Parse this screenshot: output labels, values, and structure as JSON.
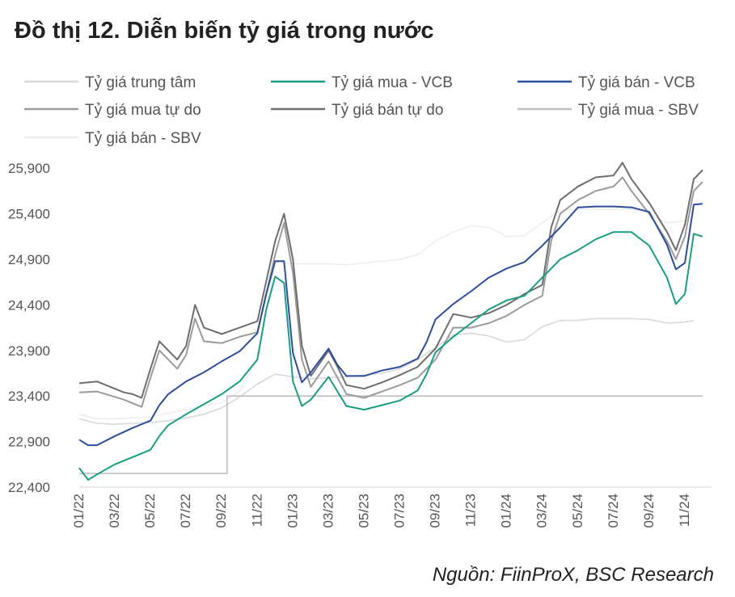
{
  "title": "Đồ thị 12. Diễn biến tỷ giá trong nước",
  "source": "Nguồn: FiinProX, BSC Research",
  "chart_data": {
    "type": "line",
    "x_tick_labels": [
      "01/22",
      "03/22",
      "05/22",
      "07/22",
      "09/22",
      "11/22",
      "01/23",
      "03/23",
      "05/23",
      "07/23",
      "09/23",
      "11/23",
      "01/24",
      "03/24",
      "05/24",
      "07/24",
      "09/24",
      "11/24"
    ],
    "y_ticks": [
      22400,
      22900,
      23400,
      23900,
      24400,
      24900,
      25400,
      25900
    ],
    "y_tick_labels": [
      "22,400",
      "22,900",
      "23,400",
      "23,900",
      "24,400",
      "24,900",
      "25,400",
      "25,900"
    ],
    "ylim": [
      22400,
      26150
    ],
    "xlim": [
      0,
      35.5
    ],
    "grid": false,
    "legend_position": "top",
    "series": [
      {
        "name": "Tỷ giá trung tâm",
        "color": "#d9d9d9",
        "width": 1.6,
        "points": [
          [
            0,
            23150
          ],
          [
            1,
            23100
          ],
          [
            2,
            23090
          ],
          [
            3,
            23100
          ],
          [
            4,
            23110
          ],
          [
            5,
            23130
          ],
          [
            6,
            23160
          ],
          [
            7,
            23200
          ],
          [
            8,
            23270
          ],
          [
            9,
            23390
          ],
          [
            10,
            23530
          ],
          [
            11,
            23640
          ],
          [
            12,
            23610
          ],
          [
            13,
            23590
          ],
          [
            14,
            23600
          ],
          [
            15,
            23610
          ],
          [
            16,
            23630
          ],
          [
            17,
            23650
          ],
          [
            18,
            23700
          ],
          [
            19,
            23800
          ],
          [
            20,
            23930
          ],
          [
            21,
            24070
          ],
          [
            22,
            24090
          ],
          [
            23,
            24060
          ],
          [
            24,
            23990
          ],
          [
            25,
            24020
          ],
          [
            26,
            24160
          ],
          [
            27,
            24230
          ],
          [
            28,
            24230
          ],
          [
            29,
            24250
          ],
          [
            30,
            24250
          ],
          [
            31,
            24250
          ],
          [
            32,
            24240
          ],
          [
            33,
            24200
          ],
          [
            34,
            24210
          ],
          [
            34.5,
            24230
          ]
        ]
      },
      {
        "name": "Tỷ giá mua - VCB",
        "color": "#1a9e83",
        "width": 2,
        "points": [
          [
            0,
            22610
          ],
          [
            0.5,
            22480
          ],
          [
            1,
            22540
          ],
          [
            2,
            22650
          ],
          [
            3,
            22730
          ],
          [
            4,
            22810
          ],
          [
            4.5,
            22960
          ],
          [
            5,
            23080
          ],
          [
            6,
            23200
          ],
          [
            7,
            23310
          ],
          [
            8,
            23420
          ],
          [
            9,
            23560
          ],
          [
            10,
            23800
          ],
          [
            10.5,
            24350
          ],
          [
            11,
            24710
          ],
          [
            11.5,
            24640
          ],
          [
            12,
            23560
          ],
          [
            12.5,
            23290
          ],
          [
            13,
            23360
          ],
          [
            14,
            23610
          ],
          [
            14.5,
            23450
          ],
          [
            15,
            23290
          ],
          [
            16,
            23250
          ],
          [
            17,
            23300
          ],
          [
            18,
            23350
          ],
          [
            19,
            23460
          ],
          [
            19.5,
            23640
          ],
          [
            20,
            23880
          ],
          [
            21,
            24050
          ],
          [
            22,
            24200
          ],
          [
            23,
            24350
          ],
          [
            24,
            24450
          ],
          [
            25,
            24500
          ],
          [
            26,
            24700
          ],
          [
            27,
            24900
          ],
          [
            28,
            25000
          ],
          [
            29,
            25120
          ],
          [
            30,
            25200
          ],
          [
            31,
            25200
          ],
          [
            32,
            25050
          ],
          [
            33,
            24700
          ],
          [
            33.5,
            24410
          ],
          [
            34,
            24520
          ],
          [
            34.5,
            25180
          ],
          [
            35,
            25150
          ]
        ]
      },
      {
        "name": "Tỷ giá bán - VCB",
        "color": "#2e4e9c",
        "width": 2,
        "points": [
          [
            0,
            22920
          ],
          [
            0.5,
            22860
          ],
          [
            1,
            22860
          ],
          [
            2,
            22960
          ],
          [
            3,
            23050
          ],
          [
            4,
            23130
          ],
          [
            4.5,
            23300
          ],
          [
            5,
            23420
          ],
          [
            6,
            23560
          ],
          [
            7,
            23660
          ],
          [
            8,
            23780
          ],
          [
            9,
            23890
          ],
          [
            10,
            24090
          ],
          [
            10.5,
            24520
          ],
          [
            11,
            24880
          ],
          [
            11.5,
            24880
          ],
          [
            12,
            23870
          ],
          [
            12.5,
            23550
          ],
          [
            13,
            23660
          ],
          [
            14,
            23920
          ],
          [
            14.5,
            23740
          ],
          [
            15,
            23620
          ],
          [
            16,
            23620
          ],
          [
            17,
            23680
          ],
          [
            18,
            23720
          ],
          [
            19,
            23810
          ],
          [
            19.5,
            23990
          ],
          [
            20,
            24240
          ],
          [
            21,
            24410
          ],
          [
            22,
            24550
          ],
          [
            23,
            24700
          ],
          [
            24,
            24800
          ],
          [
            25,
            24870
          ],
          [
            26,
            25050
          ],
          [
            27,
            25250
          ],
          [
            28,
            25470
          ],
          [
            29,
            25480
          ],
          [
            30,
            25480
          ],
          [
            31,
            25470
          ],
          [
            32,
            25420
          ],
          [
            33,
            25060
          ],
          [
            33.5,
            24790
          ],
          [
            34,
            24860
          ],
          [
            34.5,
            25500
          ],
          [
            35,
            25510
          ]
        ]
      },
      {
        "name": "Tỷ giá mua tự do",
        "color": "#9b9b9b",
        "width": 2,
        "points": [
          [
            0,
            23440
          ],
          [
            1,
            23450
          ],
          [
            2,
            23390
          ],
          [
            2.5,
            23360
          ],
          [
            3,
            23320
          ],
          [
            3.5,
            23280
          ],
          [
            4,
            23600
          ],
          [
            4.5,
            23900
          ],
          [
            5,
            23800
          ],
          [
            5.5,
            23700
          ],
          [
            6,
            23850
          ],
          [
            6.5,
            24250
          ],
          [
            7,
            24000
          ],
          [
            8,
            23980
          ],
          [
            9,
            24050
          ],
          [
            10,
            24100
          ],
          [
            11,
            24950
          ],
          [
            11.5,
            25300
          ],
          [
            12,
            24750
          ],
          [
            12.5,
            23800
          ],
          [
            13,
            23500
          ],
          [
            14,
            23780
          ],
          [
            14.5,
            23600
          ],
          [
            15,
            23420
          ],
          [
            16,
            23380
          ],
          [
            17,
            23450
          ],
          [
            18,
            23520
          ],
          [
            19,
            23600
          ],
          [
            20,
            23800
          ],
          [
            21,
            24150
          ],
          [
            22,
            24150
          ],
          [
            23,
            24200
          ],
          [
            24,
            24280
          ],
          [
            25,
            24400
          ],
          [
            26,
            24500
          ],
          [
            26.5,
            25100
          ],
          [
            27,
            25400
          ],
          [
            28,
            25550
          ],
          [
            29,
            25650
          ],
          [
            30,
            25700
          ],
          [
            30.5,
            25800
          ],
          [
            31,
            25650
          ],
          [
            32,
            25400
          ],
          [
            33,
            25100
          ],
          [
            33.5,
            24900
          ],
          [
            34,
            25150
          ],
          [
            34.5,
            25650
          ],
          [
            35,
            25750
          ]
        ]
      },
      {
        "name": "Tỷ giá bán tự do",
        "color": "#6e6e6e",
        "width": 2,
        "points": [
          [
            0,
            23540
          ],
          [
            1,
            23560
          ],
          [
            2,
            23480
          ],
          [
            2.5,
            23440
          ],
          [
            3,
            23420
          ],
          [
            3.5,
            23380
          ],
          [
            4,
            23700
          ],
          [
            4.5,
            24000
          ],
          [
            5,
            23900
          ],
          [
            5.5,
            23800
          ],
          [
            6,
            23950
          ],
          [
            6.5,
            24400
          ],
          [
            7,
            24150
          ],
          [
            8,
            24080
          ],
          [
            9,
            24150
          ],
          [
            10,
            24220
          ],
          [
            11,
            25100
          ],
          [
            11.5,
            25400
          ],
          [
            12,
            24900
          ],
          [
            12.5,
            23950
          ],
          [
            13,
            23620
          ],
          [
            14,
            23900
          ],
          [
            14.5,
            23720
          ],
          [
            15,
            23520
          ],
          [
            16,
            23480
          ],
          [
            17,
            23550
          ],
          [
            18,
            23630
          ],
          [
            19,
            23720
          ],
          [
            20,
            23920
          ],
          [
            21,
            24300
          ],
          [
            22,
            24260
          ],
          [
            23,
            24310
          ],
          [
            24,
            24400
          ],
          [
            25,
            24520
          ],
          [
            26,
            24620
          ],
          [
            26.5,
            25250
          ],
          [
            27,
            25550
          ],
          [
            28,
            25700
          ],
          [
            29,
            25800
          ],
          [
            30,
            25820
          ],
          [
            30.5,
            25960
          ],
          [
            31,
            25780
          ],
          [
            32,
            25520
          ],
          [
            33,
            25200
          ],
          [
            33.5,
            25000
          ],
          [
            34,
            25280
          ],
          [
            34.5,
            25780
          ],
          [
            35,
            25880
          ]
        ]
      },
      {
        "name": "Tỷ giá mua - SBV",
        "color": "#bfbfbf",
        "width": 1.6,
        "points": [
          [
            0,
            22550
          ],
          [
            8.3,
            22550
          ],
          [
            8.3,
            23400
          ],
          [
            35,
            23400
          ]
        ]
      },
      {
        "name": "Tỷ giá bán - SBV",
        "color": "#ededed",
        "width": 1.6,
        "points": [
          [
            0,
            23200
          ],
          [
            1,
            23150
          ],
          [
            2,
            23150
          ],
          [
            3,
            23160
          ],
          [
            4,
            23170
          ],
          [
            5,
            23210
          ],
          [
            6,
            23250
          ],
          [
            7,
            23290
          ],
          [
            8,
            23330
          ],
          [
            9,
            23450
          ],
          [
            10,
            23820
          ],
          [
            11,
            24870
          ],
          [
            12,
            24850
          ],
          [
            13,
            24850
          ],
          [
            14,
            24850
          ],
          [
            15,
            24840
          ],
          [
            16,
            24860
          ],
          [
            17,
            24880
          ],
          [
            18,
            24900
          ],
          [
            19,
            24950
          ],
          [
            20,
            25100
          ],
          [
            21,
            25200
          ],
          [
            22,
            25270
          ],
          [
            23,
            25250
          ],
          [
            24,
            25150
          ],
          [
            25,
            25160
          ],
          [
            26,
            25300
          ],
          [
            27,
            25440
          ],
          [
            28,
            25450
          ],
          [
            29,
            25450
          ],
          [
            30,
            25450
          ],
          [
            31,
            25450
          ],
          [
            32,
            25400
          ],
          [
            33,
            25300
          ],
          [
            34,
            25320
          ],
          [
            34.5,
            25400
          ]
        ]
      }
    ]
  }
}
